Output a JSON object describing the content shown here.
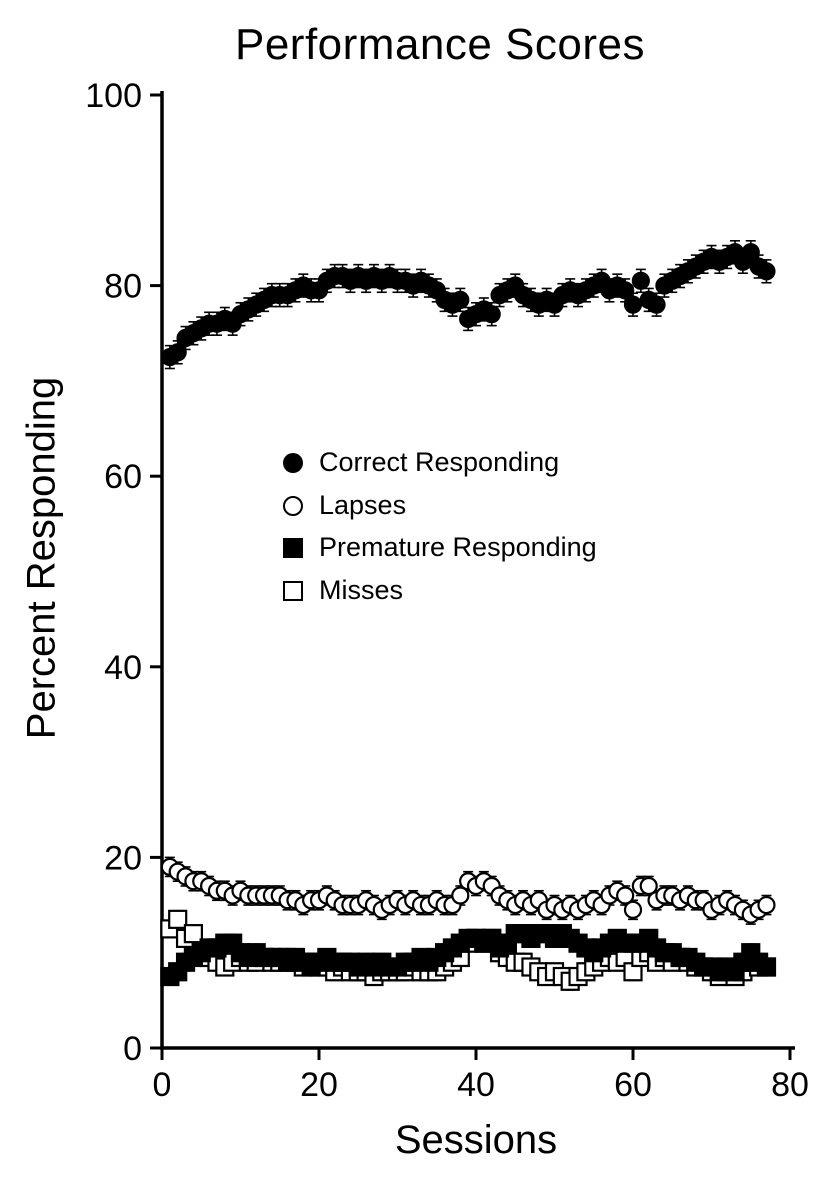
{
  "chart_data": {
    "type": "scatter",
    "title": "Performance Scores",
    "xlabel": "Sessions",
    "ylabel": "Percent Responding",
    "xlim": [
      0,
      80
    ],
    "ylim": [
      0,
      100
    ],
    "xticks": [
      0,
      20,
      40,
      60,
      80
    ],
    "yticks": [
      0,
      20,
      40,
      60,
      80,
      100
    ],
    "grid": false,
    "legend_position": "inside-left-middle",
    "x": [
      1,
      2,
      3,
      4,
      5,
      6,
      7,
      8,
      9,
      10,
      11,
      12,
      13,
      14,
      15,
      16,
      17,
      18,
      19,
      20,
      21,
      22,
      23,
      24,
      25,
      26,
      27,
      28,
      29,
      30,
      31,
      32,
      33,
      34,
      35,
      36,
      37,
      38,
      39,
      40,
      41,
      42,
      43,
      44,
      45,
      46,
      47,
      48,
      49,
      50,
      51,
      52,
      53,
      54,
      55,
      56,
      57,
      58,
      59,
      60,
      61,
      62,
      63,
      64,
      65,
      66,
      67,
      68,
      69,
      70,
      71,
      72,
      73,
      74,
      75,
      76,
      77
    ],
    "series": [
      {
        "name": "Correct Responding",
        "marker": "filled-circle",
        "sem": 1.2,
        "values": [
          72.5,
          73,
          74.5,
          75,
          75.5,
          76,
          76,
          76.5,
          76,
          77,
          77.5,
          78,
          78.5,
          79,
          79,
          79,
          79.5,
          80,
          79.5,
          79.5,
          80.5,
          81,
          81,
          80.5,
          81,
          80.5,
          81,
          80.5,
          81,
          80.5,
          80.5,
          80,
          80.5,
          80,
          79.5,
          78.5,
          78,
          78.5,
          76.5,
          77,
          77.5,
          77,
          79,
          79.5,
          80,
          79,
          78.5,
          78,
          78.5,
          78,
          79,
          79.5,
          79,
          79.5,
          80,
          80.5,
          79.5,
          80,
          79.5,
          78,
          80.5,
          78.5,
          78,
          80,
          80.5,
          81,
          81.5,
          82,
          82.5,
          83,
          82.5,
          83,
          83.5,
          82.5,
          83.5,
          82,
          81.5
        ]
      },
      {
        "name": "Lapses",
        "marker": "open-circle",
        "sem": 1.0,
        "values": [
          19,
          18.5,
          18,
          17.5,
          17.5,
          17,
          16.5,
          16.5,
          16,
          16.5,
          16,
          16,
          16,
          16,
          16,
          15.5,
          15.5,
          15,
          15.5,
          15.5,
          16,
          15.5,
          15,
          15,
          15,
          15.5,
          15,
          14.5,
          15,
          15.5,
          15,
          15.5,
          15,
          15,
          15.5,
          15,
          15,
          16,
          17.5,
          17,
          17.5,
          17,
          16,
          15.5,
          15,
          15.5,
          15,
          15.5,
          14.5,
          15,
          14.5,
          15,
          14.5,
          15,
          15.5,
          15,
          16,
          16.5,
          16,
          14.5,
          17,
          17,
          15.5,
          16,
          16,
          15.5,
          16,
          15.5,
          15.5,
          14.5,
          15,
          15.5,
          15,
          14.5,
          14,
          14.5,
          15
        ]
      },
      {
        "name": "Premature Responding",
        "marker": "filled-square",
        "sem": 0.9,
        "values": [
          7.5,
          8,
          9,
          9.5,
          10,
          10.5,
          10.5,
          11,
          11,
          10,
          9.5,
          10,
          9.5,
          9.5,
          9.5,
          9,
          9.5,
          9,
          8.5,
          9,
          9.5,
          9,
          9,
          9,
          8.5,
          9,
          8.5,
          9,
          8.5,
          8.5,
          9,
          9,
          9.5,
          9,
          9.5,
          10,
          10.5,
          11,
          11.5,
          11.5,
          11,
          11.5,
          10.5,
          11,
          12,
          12,
          11.5,
          12,
          12,
          11.5,
          12,
          11.5,
          11,
          10.5,
          10,
          10.5,
          11,
          11.5,
          11,
          11,
          11,
          11.5,
          10.5,
          10,
          10,
          9.5,
          9.5,
          9,
          8.5,
          8.5,
          8,
          8.5,
          8,
          9,
          10,
          9,
          8.5
        ]
      },
      {
        "name": "Misses",
        "marker": "open-square",
        "sem": 0.9,
        "values": [
          12.5,
          13.5,
          11.5,
          12,
          10,
          9.5,
          9,
          8.5,
          9,
          9.5,
          9,
          9,
          9.5,
          9,
          9,
          9.5,
          9,
          8.5,
          9,
          8.5,
          8.5,
          8,
          8.5,
          8,
          8,
          8,
          7.5,
          8,
          8,
          8,
          8,
          8.5,
          8,
          8,
          8,
          8.5,
          9,
          9.5,
          11,
          11.5,
          11,
          11.5,
          10,
          9.5,
          9,
          9,
          8.5,
          8,
          7.5,
          8,
          7.5,
          7,
          7.5,
          8,
          8.5,
          9,
          9.5,
          9,
          9.5,
          8,
          9.5,
          10,
          9,
          9.5,
          9,
          9.5,
          9,
          8.5,
          8.5,
          8,
          7.5,
          8,
          7.5,
          8,
          9,
          8.5,
          8.5
        ]
      }
    ]
  }
}
